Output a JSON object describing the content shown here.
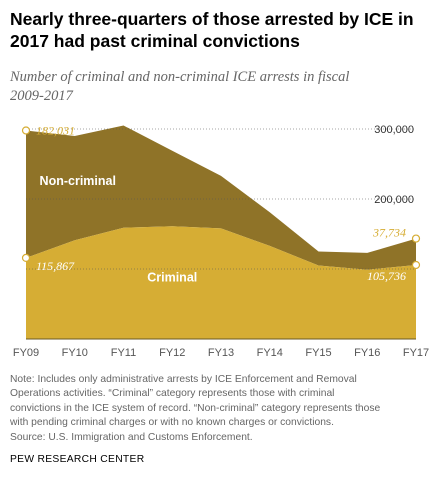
{
  "title_lines": [
    "Nearly three-quarters of those arrested by ICE in",
    "2017 had past criminal convictions"
  ],
  "subtitle_lines": [
    "Number of criminal and non-criminal ICE arrests in fiscal",
    "2009-2017"
  ],
  "chart_data": {
    "type": "area",
    "stacked": true,
    "categories": [
      "FY09",
      "FY10",
      "FY11",
      "FY12",
      "FY13",
      "FY14",
      "FY15",
      "FY16",
      "FY17"
    ],
    "series": [
      {
        "name": "Criminal",
        "color": "#d6ad34",
        "values": [
          115867,
          141000,
          159000,
          161000,
          158000,
          133000,
          105000,
          99000,
          105736
        ]
      },
      {
        "name": "Non-criminal",
        "color": "#8f7328",
        "values": [
          182031,
          149000,
          146000,
          108000,
          75000,
          48000,
          20000,
          24000,
          37734
        ]
      }
    ],
    "totals": [
      297898,
      290000,
      305000,
      269000,
      233000,
      181000,
      125000,
      123000,
      143470
    ],
    "y_ticks": [
      {
        "value": 300000,
        "label": "300,000"
      },
      {
        "value": 200000,
        "label": "200,000"
      },
      {
        "value": 100000,
        "label": ""
      }
    ],
    "ylim": [
      0,
      320000
    ],
    "grid": "horizontal dotted",
    "annotations": [
      {
        "label": "182,031",
        "category": "FY09",
        "value": 297898,
        "color": "#d6ad34"
      },
      {
        "label": "115,867",
        "category": "FY09",
        "value": 115867,
        "color": "#ffffff"
      },
      {
        "label": "37,734",
        "category": "FY17",
        "value": 143470,
        "color": "#d6ad34"
      },
      {
        "label": "105,736",
        "category": "FY17",
        "value": 105736,
        "color": "#ffffff"
      }
    ],
    "area_labels": {
      "noncriminal": "Non-criminal",
      "criminal": "Criminal"
    }
  },
  "note_lines": [
    "Note: Includes only administrative arrests by ICE Enforcement and Removal",
    "Operations activities. “Criminal” category represents those with criminal",
    "convictions in the ICE system of record. “Non-criminal” category represents those",
    "with pending criminal charges or with no known charges or convictions.",
    "Source: U.S. Immigration and Customs Enforcement."
  ],
  "organization": "PEW RESEARCH CENTER"
}
